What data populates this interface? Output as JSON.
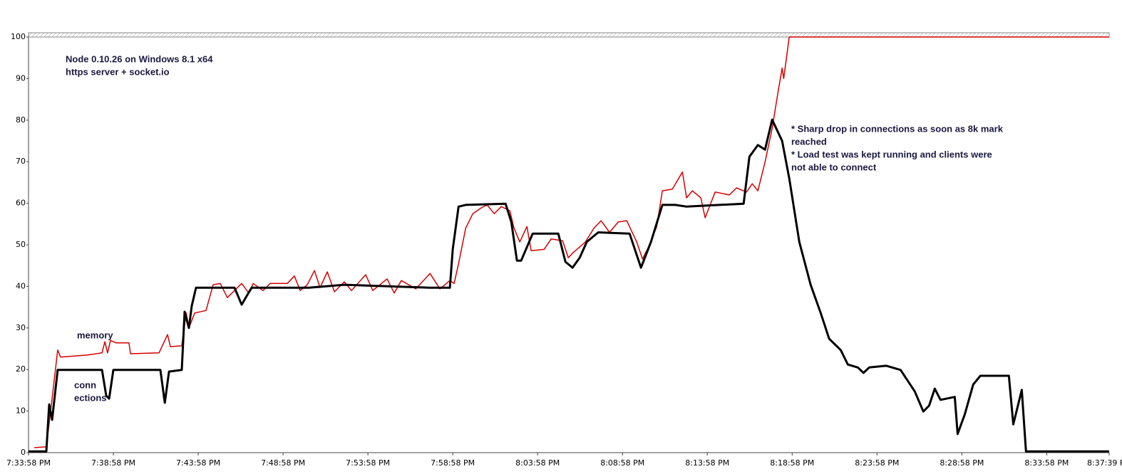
{
  "chart_data": {
    "type": "line",
    "annotations": [
      "Node 0.10.26 on Windows 8.1 x64",
      "https server + socket.io",
      "memory",
      "conn",
      "ections",
      "* Sharp drop in connections as soon as 8k mark",
      "reached",
      "* Load test was kept running and clients were",
      "not able to connect"
    ],
    "xlim": [
      0,
      63.68
    ],
    "xticks": [
      {
        "value": 0,
        "label": "7:33:58 PM"
      },
      {
        "value": 5,
        "label": "7:38:58 PM"
      },
      {
        "value": 10,
        "label": "7:43:58 PM"
      },
      {
        "value": 15,
        "label": "7:48:58 PM"
      },
      {
        "value": 20,
        "label": "7:53:58 PM"
      },
      {
        "value": 25,
        "label": "7:58:58 PM"
      },
      {
        "value": 30,
        "label": "8:03:58 PM"
      },
      {
        "value": 35,
        "label": "8:08:58 PM"
      },
      {
        "value": 40,
        "label": "8:13:58 PM"
      },
      {
        "value": 45,
        "label": "8:18:58 PM"
      },
      {
        "value": 50,
        "label": "8:23:58 PM"
      },
      {
        "value": 55,
        "label": "8:28:58 PM"
      },
      {
        "value": 60,
        "label": "8:33:58 PM"
      },
      {
        "value": 63.68,
        "label": "8:37:39 PM"
      }
    ],
    "ylim": [
      0,
      100
    ],
    "yticks": [
      0,
      10,
      20,
      30,
      40,
      50,
      60,
      70,
      80,
      90,
      100
    ],
    "grid": false,
    "series": [
      {
        "color": "#d40000",
        "x": [
          0.34,
          1.05,
          1.39,
          1.72,
          1.89,
          3.49,
          4.33,
          4.5,
          4.66,
          4.83,
          5.17,
          5.92,
          6.01,
          7.69,
          8.19,
          8.36,
          9.03,
          9.29,
          9.45,
          9.79,
          10.46,
          10.88,
          11.3,
          11.72,
          12.56,
          12.98,
          13.24,
          13.82,
          14.24,
          15.25,
          15.67,
          16.01,
          16.43,
          16.85,
          17.18,
          17.61,
          18.03,
          18.61,
          19.03,
          19.87,
          20.29,
          21.13,
          21.55,
          21.97,
          22.82,
          23.66,
          24.24,
          24.83,
          25.08,
          25.34,
          25.76,
          26.18,
          26.68,
          27.02,
          27.44,
          27.86,
          28.36,
          28.61,
          28.95,
          29.37,
          29.62,
          30.38,
          30.8,
          31.47,
          31.81,
          32.06,
          32.82,
          33.32,
          33.74,
          34.24,
          34.75,
          35.25,
          35.84,
          36.18,
          36.51,
          37.02,
          37.35,
          37.94,
          38.53,
          38.78,
          39.12,
          39.62,
          39.87,
          40.46,
          41.3,
          41.72,
          42.31,
          42.65,
          42.98,
          43.4,
          43.82,
          44.16,
          44.41,
          44.5,
          44.83,
          63.68
        ],
        "values": [
          1.2,
          1.4,
          13,
          24.7,
          23,
          23.5,
          24,
          26.7,
          24,
          27,
          26.4,
          26.4,
          23.8,
          24,
          28.4,
          25.5,
          25.7,
          33.6,
          30,
          33.6,
          34.2,
          40.4,
          40.7,
          37.3,
          40.7,
          38.4,
          40.7,
          39,
          40.7,
          40.7,
          42.5,
          39,
          40.4,
          43.8,
          39.7,
          43.5,
          38.7,
          41.1,
          39,
          42.8,
          39,
          41.8,
          38.4,
          41.4,
          39.4,
          43.1,
          39.4,
          41.4,
          40.7,
          45.5,
          54,
          57.5,
          58.9,
          59.6,
          57.5,
          59.2,
          58.2,
          54,
          50.7,
          54.4,
          48.6,
          48.9,
          51.4,
          51,
          46.9,
          48,
          50.7,
          54,
          55.8,
          53,
          55.5,
          55.8,
          50.7,
          46.6,
          49.3,
          54.4,
          63,
          63.4,
          67.5,
          61.3,
          63,
          61.3,
          56.5,
          62.7,
          62,
          63.7,
          62.7,
          64.7,
          63,
          69.9,
          78,
          86.6,
          92.5,
          90,
          100,
          100
        ]
      },
      {
        "color": "#000000",
        "x": [
          0,
          1.05,
          1.22,
          1.39,
          1.72,
          4.33,
          4.58,
          4.75,
          5,
          7.77,
          8.03,
          8.28,
          9.03,
          9.2,
          9.45,
          9.62,
          9.87,
          12.14,
          12.56,
          12.9,
          13.15,
          16.51,
          18.61,
          23.66,
          24.83,
          25,
          25.34,
          25.76,
          28.11,
          28.45,
          28.78,
          29.03,
          29.71,
          31.22,
          31.64,
          32.06,
          32.48,
          32.9,
          33.57,
          35.42,
          36.09,
          36.68,
          37.35,
          38.11,
          38.78,
          42.14,
          42.48,
          42.98,
          43.4,
          43.82,
          44.41,
          44.83,
          45.42,
          46.09,
          46.68,
          47.18,
          47.86,
          48.28,
          48.87,
          49.2,
          49.54,
          50.55,
          51.39,
          52.23,
          52.73,
          53.07,
          53.4,
          53.74,
          54.58,
          54.75,
          55.17,
          55.67,
          56.09,
          57.77,
          58.03,
          58.53,
          58.78,
          63.68
        ],
        "values": [
          0.3,
          0.3,
          11.6,
          7.9,
          19.9,
          19.9,
          13.7,
          13,
          19.9,
          19.9,
          12,
          19.5,
          19.9,
          33.9,
          30,
          35.3,
          39.7,
          39.7,
          35.6,
          38,
          39.7,
          39.7,
          40.4,
          39.7,
          39.7,
          49,
          59.2,
          59.6,
          59.9,
          55.5,
          46.2,
          46.2,
          52.7,
          52.7,
          45.9,
          44.5,
          46.9,
          50.7,
          53,
          52.7,
          44.5,
          50.7,
          59.6,
          59.6,
          59.2,
          59.9,
          71.2,
          74,
          72.9,
          80.1,
          75,
          66,
          50.7,
          40.4,
          33.6,
          27.4,
          24.7,
          21.2,
          20.5,
          19.2,
          20.5,
          20.9,
          19.9,
          14.7,
          9.9,
          11.3,
          15.4,
          12.7,
          13.4,
          4.5,
          9.2,
          16.4,
          18.5,
          18.5,
          6.8,
          15.1,
          0.3,
          0.3
        ]
      }
    ]
  }
}
